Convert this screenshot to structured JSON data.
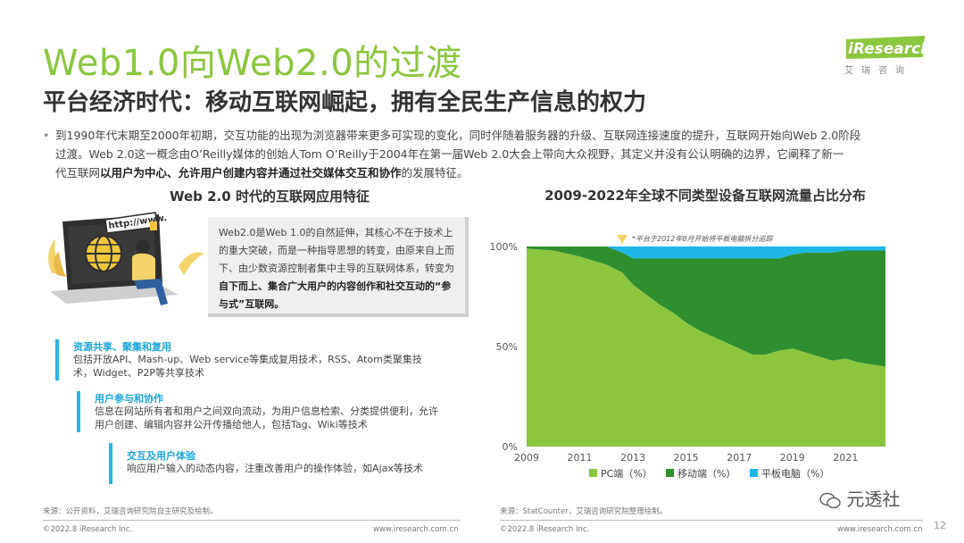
{
  "header": {
    "title": "Web1.0向Web2.0的过渡",
    "subtitle": "平台经济时代：移动互联网崛起，拥有全民生产信息的权力",
    "logo": "iResearch",
    "logo_cn": "艾瑞咨询"
  },
  "intro": {
    "bullet": "•",
    "line1": "到1990年代末期至2000年初期，交互功能的出现为浏览器带来更多可实现的变化，同时伴随着服务器的升级、互联网连接速度的提升，互联网开始向Web 2.0阶段",
    "line2": "过渡。Web 2.0这一概念由O’Reilly媒体的创始人Tom O’Reilly于2004年在第一届Web 2.0大会上带向大众视野，其定义并没有公认明确的边界，它阐释了新一",
    "line3_pre": "代互联网",
    "line3_bold": "以用户为中心、允许用户创建内容并通过社交媒体交互和协作",
    "line3_post": "的发展特征。"
  },
  "left": {
    "section_title": "Web 2.0 时代的互联网应用特征",
    "illustration_text": "http://www.",
    "desc_part1": "Web2.0是Web 1.0的自然延伸，其核心不在于技术上的重大突破，而是一种指导思想的转变，由原来自上而下、由少数资源控制者集中主导的互联网体系，转变为",
    "desc_bold": "自下而上、集合广大用户的内容创作和社交互动的“参与式”互联网。",
    "features": [
      {
        "title": "资源共享、聚集和复用",
        "line1": "包括开放API、Mash-up、Web service等集成复用技术，RSS、Atom类聚集技",
        "line2": "术，Widget、P2P等共享技术"
      },
      {
        "title": "用户参与和协作",
        "line1": "信息在网站所有者和用户之间双向流动，为用户信息检索、分类提供便利，允许",
        "line2": "用户创建、编辑内容并公开传播给他人，包括Tag、Wiki等技术"
      },
      {
        "title": "交互及用户体验",
        "line1": "响应用户输入的动态内容，注重改善用户的操作体验，如Ajax等技术",
        "line2": ""
      }
    ],
    "source": "来源：公开资料，艾瑞咨询研究院自主研究及绘制。",
    "copyright": "©2022.8 iResearch Inc.",
    "website": "www.iresearch.com.cn"
  },
  "right": {
    "source": "来源：StatCounter，艾瑞咨询研究院整理绘制。",
    "copyright": "©2022.8 iResearch Inc.",
    "website": "www.iresearch.com.cn"
  },
  "page_number": "12",
  "watermark": "元透社",
  "colors": {
    "title_green": "#8cc63f",
    "pc": "#8cc63f",
    "mobile": "#2f8f2f",
    "tablet": "#1fb6e8",
    "accent_blue": "#1aa6dc"
  },
  "chart_data": {
    "type": "area",
    "stacked": true,
    "percent": true,
    "title": "2009-2022年全球不同类型设备互联网流量占比分布",
    "annotation": "*平台于2012年8月开始将平板电脑拆分追踪",
    "annotation_x": 2012.6,
    "x_ticks": [
      "2009",
      "2011",
      "2013",
      "2015",
      "2017",
      "2019",
      "2021"
    ],
    "y_ticks": [
      "0%",
      "50%",
      "100%"
    ],
    "xlim": [
      2009,
      2022.5
    ],
    "ylim": [
      0,
      100
    ],
    "legend_position": "bottom",
    "x": [
      2009.0,
      2010.0,
      2011.0,
      2011.5,
      2012.0,
      2012.6,
      2013.0,
      2013.5,
      2014.0,
      2014.5,
      2015.0,
      2015.5,
      2016.0,
      2016.5,
      2017.0,
      2017.5,
      2018.0,
      2018.5,
      2019.0,
      2019.5,
      2020.0,
      2020.5,
      2021.0,
      2021.5,
      2022.0,
      2022.5
    ],
    "series": [
      {
        "name": "PC端（%）",
        "values": [
          99,
          98,
          95,
          93,
          91,
          87,
          81,
          76,
          71,
          67,
          62,
          58,
          55,
          52,
          49,
          46,
          46,
          48,
          49,
          47,
          45,
          43,
          44,
          42,
          41,
          40
        ]
      },
      {
        "name": "移动端（%）",
        "values": [
          1,
          2,
          5,
          7,
          9,
          10,
          13,
          18,
          23,
          27,
          32,
          36,
          39,
          42,
          45,
          48,
          48,
          46,
          47,
          50,
          52,
          54,
          54,
          56,
          57,
          58
        ]
      },
      {
        "name": "平板电脑（%）",
        "values": [
          0,
          0,
          0,
          0,
          0,
          3,
          6,
          6,
          6,
          6,
          6,
          6,
          6,
          6,
          6,
          6,
          6,
          6,
          4,
          3,
          3,
          3,
          2,
          2,
          2,
          2
        ]
      }
    ]
  }
}
